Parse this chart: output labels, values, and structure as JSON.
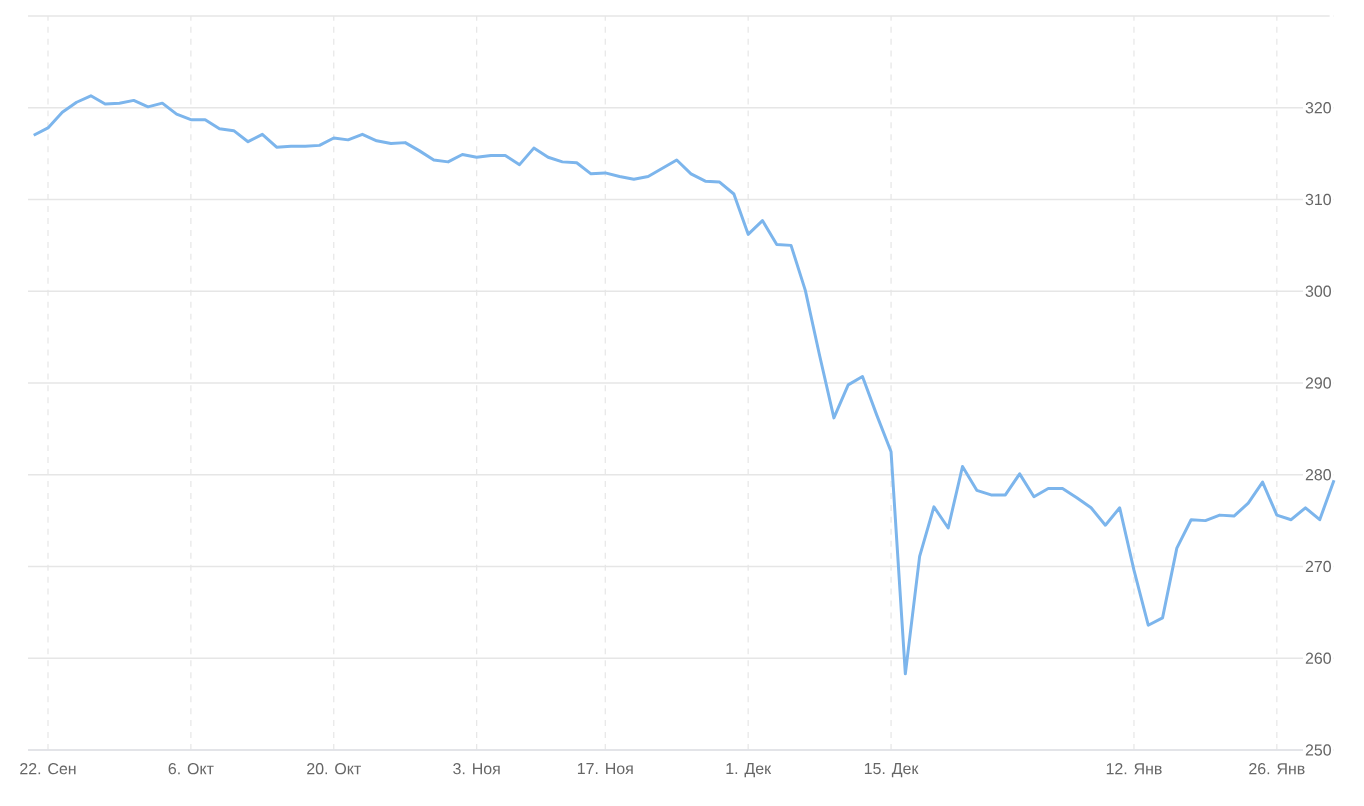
{
  "chart_data": {
    "type": "line",
    "categories": [
      null,
      "22. Сен",
      null,
      null,
      null,
      null,
      null,
      null,
      null,
      null,
      null,
      "6. Окт",
      null,
      null,
      null,
      null,
      null,
      null,
      null,
      null,
      null,
      "20. Окт",
      null,
      null,
      null,
      null,
      null,
      null,
      null,
      null,
      null,
      "3. Ноя",
      null,
      null,
      null,
      null,
      null,
      null,
      null,
      null,
      "17. Ноя",
      null,
      null,
      null,
      null,
      null,
      null,
      null,
      null,
      null,
      "1. Дек",
      null,
      null,
      null,
      null,
      null,
      null,
      null,
      null,
      null,
      "15. Дек",
      null,
      null,
      null,
      null,
      null,
      null,
      null,
      null,
      null,
      null,
      null,
      null,
      null,
      null,
      null,
      null,
      "12. Янв",
      null,
      null,
      null,
      null,
      null,
      null,
      null,
      null,
      null,
      "26. Янв",
      null,
      null,
      null,
      null
    ],
    "series": [
      {
        "color": "#7cb5ec",
        "values": [
          317.0,
          317.8,
          319.5,
          320.6,
          321.3,
          320.4,
          320.5,
          320.8,
          320.1,
          320.5,
          319.3,
          318.7,
          318.7,
          317.7,
          317.5,
          316.3,
          317.1,
          315.7,
          315.8,
          315.8,
          315.9,
          316.7,
          316.5,
          317.1,
          316.4,
          316.1,
          316.2,
          315.3,
          314.3,
          314.1,
          314.9,
          314.6,
          314.8,
          314.8,
          313.8,
          315.6,
          314.6,
          314.1,
          314.0,
          312.8,
          312.9,
          312.5,
          312.2,
          312.5,
          313.4,
          314.3,
          312.8,
          312.0,
          311.9,
          310.6,
          306.2,
          307.7,
          305.1,
          305.0,
          300.1,
          293.0,
          286.2,
          289.8,
          290.7,
          286.5,
          282.5,
          258.3,
          271.1,
          276.5,
          274.2,
          280.9,
          278.3,
          277.8,
          277.8,
          280.1,
          277.6,
          278.5,
          278.5,
          277.5,
          276.4,
          274.5,
          276.4,
          269.6,
          263.6,
          264.4,
          272.0,
          275.1,
          275.0,
          275.6,
          275.5,
          276.9,
          279.2,
          275.6,
          275.1,
          276.4,
          275.1,
          279.4
        ]
      }
    ],
    "ylim": [
      250,
      330
    ],
    "yticks": [
      250,
      260,
      270,
      280,
      290,
      300,
      310,
      320,
      {
        "value": 330,
        "label": null
      }
    ],
    "grid": true,
    "marker": "none",
    "line_style": "solid"
  }
}
